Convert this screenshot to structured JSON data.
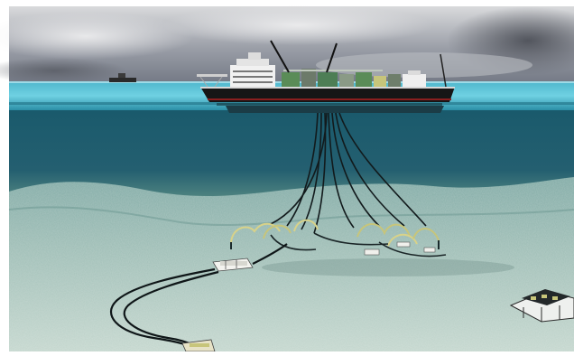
{
  "image": {
    "subjects": [
      "fpso-vessel-icon",
      "distant-boat-icon",
      "flexible-risers",
      "subsea-manifold",
      "subsea-template",
      "flowlines"
    ],
    "palette": {
      "sky_top": "#d9dadc",
      "sky_mid": "#9a9ea7",
      "storm_cloud": "#5d6068",
      "sea_surface": "#6fd1e2",
      "water_column": "#1f5f71",
      "seabed_far": "#7fa9a4",
      "seabed_near": "#b6cec5",
      "ship_hull": "#161616",
      "ship_superstructure": "#f1f1f1",
      "equipment_green": "#5a8c57",
      "equipment_yellow": "#c7c57a"
    }
  }
}
